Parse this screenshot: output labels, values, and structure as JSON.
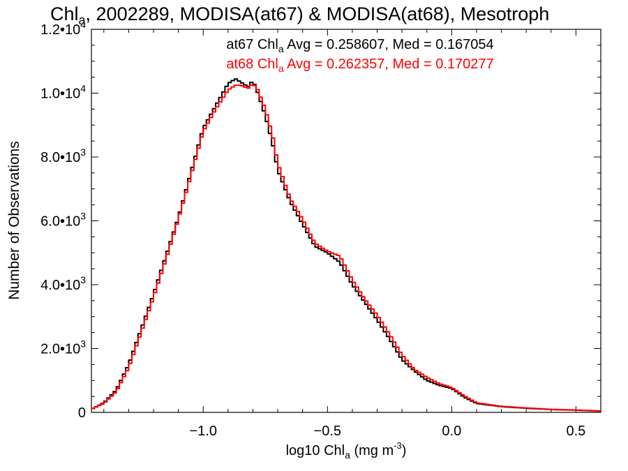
{
  "chart_data": {
    "type": "line",
    "title_parts": {
      "pre": "Chl",
      "sub": "a",
      "post": ", 2002289, MODISA(at67) & MODISA(at68), Mesotroph"
    },
    "xlabel_parts": {
      "pre": "log10 Chl",
      "sub": "a",
      "post": " (mg m",
      "sup": "-3",
      "end": ")"
    },
    "ylabel": "Number of Observations",
    "xlim": [
      -1.45,
      0.6
    ],
    "ylim": [
      0,
      12000
    ],
    "xticks": [
      {
        "value": -1.0,
        "label": "−1.0"
      },
      {
        "value": -0.5,
        "label": "−0.5"
      },
      {
        "value": 0.0,
        "label": "0.0"
      },
      {
        "value": 0.5,
        "label": "0.5"
      }
    ],
    "yticks": [
      {
        "value": 0,
        "base": "0",
        "exp": ""
      },
      {
        "value": 2000,
        "base": "2.0•10",
        "exp": "3"
      },
      {
        "value": 4000,
        "base": "4.0•10",
        "exp": "3"
      },
      {
        "value": 6000,
        "base": "6.0•10",
        "exp": "3"
      },
      {
        "value": 8000,
        "base": "8.0•10",
        "exp": "3"
      },
      {
        "value": 10000,
        "base": "1.0•10",
        "exp": "4"
      },
      {
        "value": 12000,
        "base": "1.2•10",
        "exp": "4"
      }
    ],
    "annotations": [
      {
        "color": "#000000",
        "pre": "at67 Chl",
        "sub": "a",
        "post": " Avg = 0.258607, Med = 0.167054"
      },
      {
        "color": "#ff0000",
        "pre": "at68 Chl",
        "sub": "a",
        "post": " Avg = 0.262357, Med = 0.170277"
      }
    ],
    "series": [
      {
        "color": "#000000",
        "x": [
          -1.45,
          -1.4,
          -1.35,
          -1.3,
          -1.25,
          -1.2,
          -1.15,
          -1.1,
          -1.05,
          -1.0,
          -0.95,
          -0.9,
          -0.87,
          -0.85,
          -0.82,
          -0.8,
          -0.78,
          -0.75,
          -0.72,
          -0.7,
          -0.65,
          -0.6,
          -0.55,
          -0.5,
          -0.45,
          -0.4,
          -0.35,
          -0.3,
          -0.25,
          -0.2,
          -0.15,
          -0.1,
          -0.05,
          0.0,
          0.05,
          0.1,
          0.2,
          0.3,
          0.4,
          0.5,
          0.6
        ],
        "y": [
          100,
          300,
          700,
          1500,
          2600,
          3700,
          4900,
          6100,
          7500,
          8900,
          9600,
          10300,
          10450,
          10350,
          10200,
          10400,
          10000,
          9300,
          8400,
          7600,
          6600,
          5900,
          5200,
          5000,
          4700,
          4000,
          3450,
          2900,
          2300,
          1650,
          1300,
          1000,
          850,
          750,
          480,
          280,
          180,
          130,
          90,
          70,
          40
        ]
      },
      {
        "color": "#ff0000",
        "x": [
          -1.45,
          -1.4,
          -1.35,
          -1.3,
          -1.25,
          -1.2,
          -1.15,
          -1.1,
          -1.05,
          -1.0,
          -0.95,
          -0.9,
          -0.87,
          -0.85,
          -0.82,
          -0.8,
          -0.78,
          -0.75,
          -0.72,
          -0.7,
          -0.65,
          -0.6,
          -0.55,
          -0.5,
          -0.45,
          -0.4,
          -0.35,
          -0.3,
          -0.25,
          -0.2,
          -0.15,
          -0.1,
          -0.05,
          0.0,
          0.05,
          0.1,
          0.2,
          0.3,
          0.4,
          0.5,
          0.6
        ],
        "y": [
          100,
          280,
          650,
          1400,
          2500,
          3600,
          4800,
          6050,
          7400,
          8800,
          9500,
          10100,
          10250,
          10250,
          10150,
          10300,
          10100,
          9500,
          8650,
          7800,
          6700,
          6050,
          5300,
          5050,
          4900,
          4150,
          3550,
          3050,
          2450,
          1800,
          1350,
          1100,
          900,
          780,
          520,
          300,
          190,
          140,
          95,
          75,
          45
        ]
      }
    ]
  }
}
